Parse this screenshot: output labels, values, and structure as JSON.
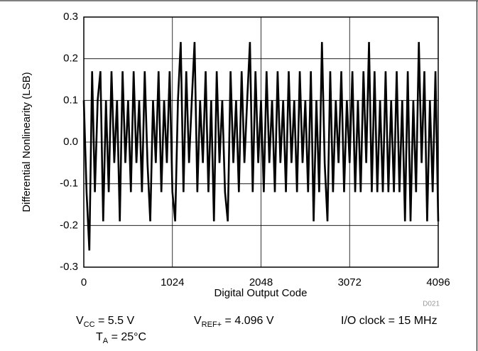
{
  "chart_data": {
    "type": "line",
    "x_label": "Digital Output Code",
    "y_label": "Differential Nonlinearity (LSB)",
    "xlim": [
      0,
      4096
    ],
    "xticks": [
      0,
      1024,
      2048,
      3072,
      4096
    ],
    "ylim": [
      -0.3,
      0.3
    ],
    "yticks": [
      -0.3,
      -0.2,
      -0.1,
      {
        "value": 0,
        "label": "0.0"
      },
      0.1,
      0.2,
      0.3
    ],
    "grid": true,
    "color": "#000000",
    "x": [
      0,
      32,
      64,
      96,
      128,
      160,
      192,
      224,
      256,
      288,
      320,
      352,
      384,
      416,
      448,
      480,
      512,
      544,
      576,
      608,
      640,
      672,
      704,
      736,
      768,
      800,
      832,
      864,
      896,
      928,
      960,
      992,
      1024,
      1056,
      1088,
      1120,
      1152,
      1184,
      1216,
      1248,
      1280,
      1312,
      1344,
      1376,
      1408,
      1440,
      1472,
      1504,
      1536,
      1568,
      1600,
      1632,
      1664,
      1696,
      1728,
      1760,
      1792,
      1824,
      1856,
      1888,
      1920,
      1952,
      1984,
      2016,
      2048,
      2080,
      2112,
      2144,
      2176,
      2208,
      2240,
      2272,
      2304,
      2336,
      2368,
      2400,
      2432,
      2464,
      2496,
      2528,
      2560,
      2592,
      2624,
      2656,
      2688,
      2720,
      2752,
      2784,
      2816,
      2848,
      2880,
      2912,
      2944,
      2976,
      3008,
      3040,
      3072,
      3104,
      3136,
      3168,
      3200,
      3232,
      3264,
      3296,
      3328,
      3360,
      3392,
      3424,
      3456,
      3488,
      3520,
      3552,
      3584,
      3616,
      3648,
      3680,
      3712,
      3744,
      3776,
      3808,
      3840,
      3872,
      3904,
      3936,
      3968,
      4000,
      4032,
      4064,
      4096
    ],
    "values": [
      0.1,
      -0.12,
      -0.26,
      0.17,
      -0.12,
      0.1,
      0.17,
      -0.19,
      0.1,
      -0.12,
      0.17,
      -0.05,
      0.1,
      -0.19,
      0.17,
      -0.05,
      0.1,
      -0.12,
      0.17,
      -0.05,
      0.1,
      -0.12,
      0.17,
      -0.05,
      -0.19,
      0.1,
      -0.05,
      0.17,
      -0.12,
      0.1,
      -0.05,
      0.17,
      -0.12,
      -0.19,
      0.1,
      0.24,
      -0.12,
      0.17,
      -0.05,
      0.1,
      0.24,
      -0.12,
      0.1,
      -0.05,
      0.17,
      -0.12,
      0.1,
      -0.19,
      0.17,
      -0.05,
      0.1,
      -0.12,
      -0.19,
      0.17,
      -0.05,
      0.1,
      -0.12,
      0.17,
      -0.05,
      0.1,
      0.24,
      -0.12,
      0.17,
      -0.05,
      0.1,
      -0.12,
      0.17,
      -0.05,
      0.1,
      -0.12,
      0.17,
      -0.05,
      0.1,
      -0.12,
      0.17,
      -0.05,
      0.1,
      -0.12,
      0.17,
      -0.05,
      0.1,
      -0.12,
      0.17,
      -0.19,
      0.1,
      -0.12,
      0.24,
      -0.05,
      -0.19,
      0.17,
      -0.12,
      0.1,
      -0.05,
      0.17,
      -0.12,
      0.1,
      -0.05,
      0.17,
      -0.12,
      0.1,
      -0.12,
      0.17,
      -0.05,
      0.24,
      -0.12,
      0.17,
      -0.12,
      0.1,
      -0.12,
      0.17,
      -0.12,
      0.1,
      -0.12,
      0.17,
      -0.12,
      0.1,
      -0.19,
      0.17,
      -0.19,
      0.1,
      -0.12,
      0.24,
      -0.05,
      0.17,
      -0.19,
      0.1,
      -0.12,
      0.17,
      -0.19
    ],
    "annotations": [
      {
        "text": "V",
        "sub": "CC",
        "tail": " = 5.5 V"
      },
      {
        "text": "V",
        "sub": "REF+",
        "tail": " = 4.096 V"
      },
      {
        "text": "I/O clock = 15 MHz"
      },
      {
        "text": "T",
        "sub": "A",
        "tail": " = 25°C"
      }
    ],
    "figure_id": "D021"
  }
}
